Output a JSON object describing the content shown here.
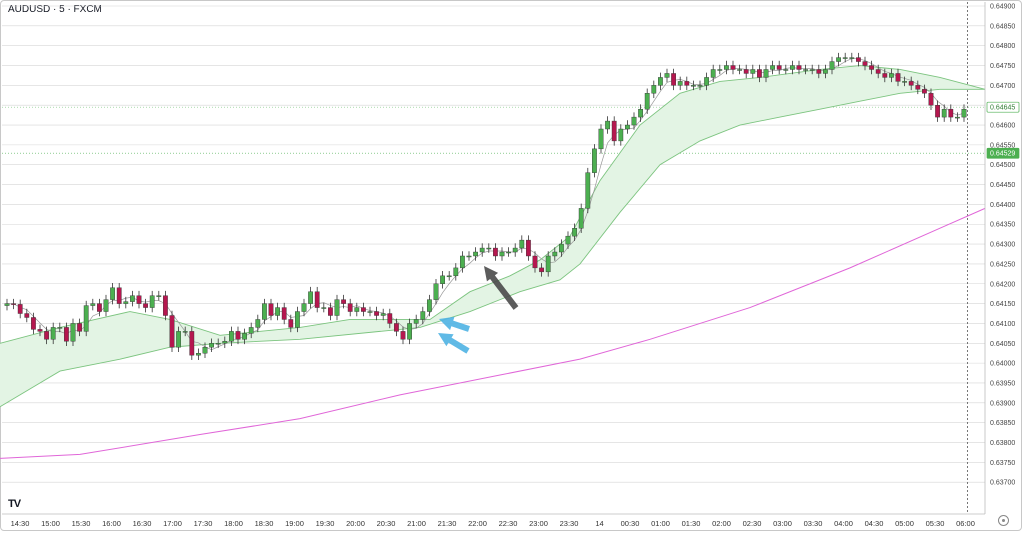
{
  "header": {
    "title": "AUDUSD · 5 · FXCM"
  },
  "logo": {
    "text": "TV",
    "name": "tradingview-logo"
  },
  "colors": {
    "bull": "#4caf50",
    "bear": "#b5174f",
    "wick": "#333333",
    "cloud_fill": "#e3f4e4",
    "cloud_line": "#7cc47f",
    "slow_ma": "#e066d8",
    "fast_ma": "#999999",
    "grid": "#d6d6d6",
    "arrow_blue": "#4fb2e3",
    "arrow_dark": "#4a4a4a"
  },
  "chart_data": {
    "type": "candlestick",
    "symbol": "AUDUSD",
    "timeframe": "5",
    "source": "FXCM",
    "ylim": [
      0.6365,
      0.649
    ],
    "y_ticks": [
      "0.64900",
      "0.64850",
      "0.64800",
      "0.64750",
      "0.64700",
      "0.64650",
      "0.64600",
      "0.64550",
      "0.64500",
      "0.64450",
      "0.64400",
      "0.64350",
      "0.64300",
      "0.64250",
      "0.64200",
      "0.64150",
      "0.64100",
      "0.64050",
      "0.64000",
      "0.63950",
      "0.63900",
      "0.63850",
      "0.63800",
      "0.63750",
      "0.63700"
    ],
    "x_ticks": [
      "14:30",
      "15:00",
      "15:30",
      "16:00",
      "16:30",
      "17:00",
      "17:30",
      "18:00",
      "18:30",
      "19:00",
      "19:30",
      "20:00",
      "20:30",
      "21:00",
      "21:30",
      "22:00",
      "22:30",
      "23:00",
      "23:30",
      "14",
      "00:30",
      "01:00",
      "01:30",
      "02:00",
      "02:30",
      "03:00",
      "03:30",
      "04:00",
      "04:30",
      "05:00",
      "05:30",
      "06:00"
    ],
    "current_price": "0.64645",
    "reference_price": "0.64529",
    "candles_close": [
      0.6415,
      0.64148,
      0.64125,
      0.64115,
      0.64085,
      0.6408,
      0.6406,
      0.6409,
      0.6409,
      0.64055,
      0.641,
      0.6408,
      0.64145,
      0.6415,
      0.6413,
      0.6416,
      0.6419,
      0.6415,
      0.64155,
      0.6417,
      0.6415,
      0.6414,
      0.6417,
      0.6417,
      0.6412,
      0.6404,
      0.6408,
      0.6408,
      0.6402,
      0.64025,
      0.6404,
      0.6405,
      0.6405,
      0.64055,
      0.6408,
      0.6406,
      0.64075,
      0.6409,
      0.6411,
      0.6415,
      0.6412,
      0.6414,
      0.6411,
      0.6409,
      0.6413,
      0.6415,
      0.6418,
      0.6414,
      0.6414,
      0.6412,
      0.6416,
      0.6415,
      0.6413,
      0.6414,
      0.6413,
      0.6413,
      0.6412,
      0.64125,
      0.641,
      0.6408,
      0.6406,
      0.641,
      0.6411,
      0.6413,
      0.6416,
      0.642,
      0.6422,
      0.6422,
      0.6424,
      0.6427,
      0.6427,
      0.6428,
      0.6429,
      0.6429,
      0.6427,
      0.6428,
      0.6428,
      0.6429,
      0.6431,
      0.6427,
      0.6424,
      0.6423,
      0.6427,
      0.6428,
      0.643,
      0.6432,
      0.6434,
      0.6439,
      0.6448,
      0.6454,
      0.6459,
      0.6461,
      0.6456,
      0.6459,
      0.646,
      0.6462,
      0.6464,
      0.6468,
      0.647,
      0.6472,
      0.6473,
      0.647,
      0.6471,
      0.647,
      0.647,
      0.647,
      0.6472,
      0.6474,
      0.6474,
      0.6475,
      0.6474,
      0.6474,
      0.6473,
      0.6474,
      0.6472,
      0.6474,
      0.6475,
      0.6474,
      0.6474,
      0.6475,
      0.6474,
      0.6474,
      0.6474,
      0.6473,
      0.6474,
      0.6476,
      0.6477,
      0.6477,
      0.6477,
      0.6476,
      0.6475,
      0.6474,
      0.6473,
      0.6472,
      0.6473,
      0.6471,
      0.6471,
      0.647,
      0.6469,
      0.6468,
      0.6465,
      0.6462,
      0.6464,
      0.6462,
      0.6462,
      0.6464
    ],
    "series": [
      {
        "name": "",
        "role": "fast_ma"
      },
      {
        "name": "",
        "role": "cloud_upper"
      },
      {
        "name": "",
        "role": "cloud_lower"
      },
      {
        "name": "",
        "role": "slow_ma"
      }
    ],
    "slow_ma": [
      [
        0,
        0.6376
      ],
      [
        80,
        0.6377
      ],
      [
        200,
        0.6382
      ],
      [
        300,
        0.6386
      ],
      [
        400,
        0.6392
      ],
      [
        500,
        0.6397
      ],
      [
        580,
        0.6401
      ],
      [
        650,
        0.6406
      ],
      [
        750,
        0.6414
      ],
      [
        850,
        0.6424
      ],
      [
        940,
        0.6434
      ],
      [
        985,
        0.6439
      ]
    ],
    "cloud_upper": [
      [
        0,
        0.6405
      ],
      [
        60,
        0.6409
      ],
      [
        130,
        0.6413
      ],
      [
        170,
        0.6411
      ],
      [
        220,
        0.6407
      ],
      [
        300,
        0.6409
      ],
      [
        350,
        0.6411
      ],
      [
        400,
        0.6411
      ],
      [
        430,
        0.6411
      ],
      [
        470,
        0.6418
      ],
      [
        510,
        0.6422
      ],
      [
        540,
        0.6426
      ],
      [
        570,
        0.6432
      ],
      [
        600,
        0.6446
      ],
      [
        640,
        0.646
      ],
      [
        680,
        0.6468
      ],
      [
        720,
        0.6471
      ],
      [
        760,
        0.6472
      ],
      [
        820,
        0.6474
      ],
      [
        860,
        0.6475
      ],
      [
        900,
        0.6474
      ],
      [
        940,
        0.6472
      ],
      [
        985,
        0.6469
      ]
    ],
    "cloud_lower": [
      [
        0,
        0.6389
      ],
      [
        60,
        0.6398
      ],
      [
        120,
        0.6401
      ],
      [
        170,
        0.6404
      ],
      [
        220,
        0.6405
      ],
      [
        300,
        0.6406
      ],
      [
        380,
        0.6408
      ],
      [
        420,
        0.6409
      ],
      [
        470,
        0.6413
      ],
      [
        520,
        0.6418
      ],
      [
        560,
        0.6421
      ],
      [
        580,
        0.6425
      ],
      [
        620,
        0.6438
      ],
      [
        660,
        0.645
      ],
      [
        700,
        0.6456
      ],
      [
        740,
        0.646
      ],
      [
        780,
        0.6462
      ],
      [
        820,
        0.6464
      ],
      [
        860,
        0.6466
      ],
      [
        900,
        0.6468
      ],
      [
        940,
        0.6469
      ],
      [
        985,
        0.6469
      ]
    ],
    "annotations": [
      {
        "type": "arrow",
        "color": "blue",
        "at_time_index": 34,
        "price": 0.6412
      },
      {
        "type": "arrow",
        "color": "blue",
        "at_time_index": 34,
        "price": 0.6409
      },
      {
        "type": "arrow",
        "color": "dark",
        "at_time_index": 55,
        "price": 0.6427
      }
    ],
    "vertical_marker": "06:00",
    "grid": true
  }
}
